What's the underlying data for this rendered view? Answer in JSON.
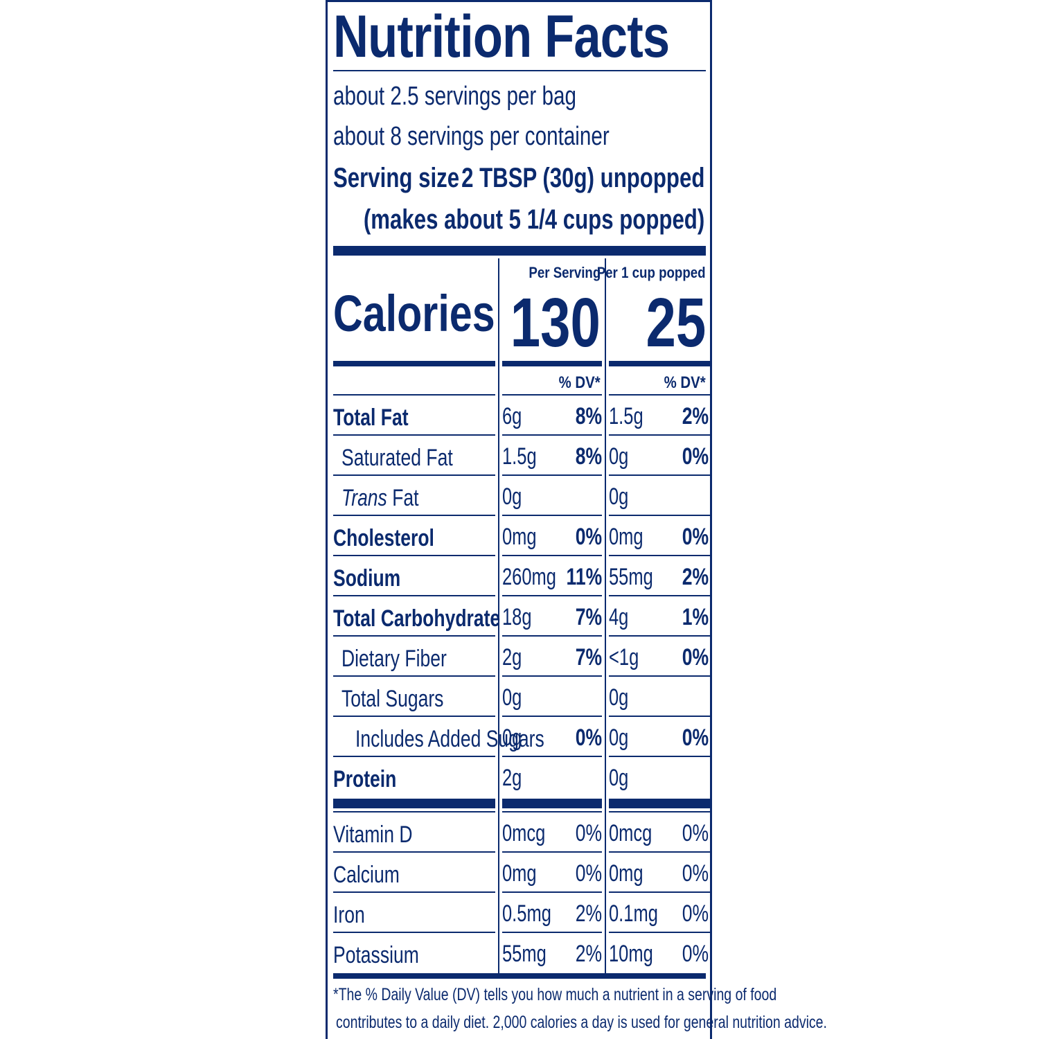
{
  "title": "Nutrition Facts",
  "servings_per_bag": "about 2.5 servings per bag",
  "servings_per_container": "about 8 servings per container",
  "serving_size_label": "Serving size",
  "serving_size_value": "2 TBSP (30g) unpopped",
  "serving_size_note": "(makes about 5 1/4 cups popped)",
  "col1_header": "Per Serving",
  "col2_header": "Per 1 cup popped",
  "calories_label": "Calories",
  "calories_col1": "130",
  "calories_col2": "25",
  "dv_header": "% DV*",
  "nutrients": [
    {
      "name": "Total Fat",
      "bold": true,
      "indent": 0,
      "a1": "6g",
      "p1": "8%",
      "a2": "1.5g",
      "p2": "2%"
    },
    {
      "name": "Saturated Fat",
      "bold": false,
      "indent": 1,
      "a1": "1.5g",
      "p1": "8%",
      "a2": "0g",
      "p2": "0%"
    },
    {
      "name": "Trans Fat",
      "italic_prefix": "Trans",
      "bold": false,
      "indent": 1,
      "a1": "0g",
      "p1": "",
      "a2": "0g",
      "p2": ""
    },
    {
      "name": "Cholesterol",
      "bold": true,
      "indent": 0,
      "a1": "0mg",
      "p1": "0%",
      "a2": "0mg",
      "p2": "0%"
    },
    {
      "name": "Sodium",
      "bold": true,
      "indent": 0,
      "a1": "260mg",
      "p1": "11%",
      "a2": "55mg",
      "p2": "2%"
    },
    {
      "name": "Total Carbohydrate",
      "bold": true,
      "indent": 0,
      "a1": "18g",
      "p1": "7%",
      "a2": "4g",
      "p2": "1%"
    },
    {
      "name": "Dietary Fiber",
      "bold": false,
      "indent": 1,
      "a1": "2g",
      "p1": "7%",
      "a2": "<1g",
      "p2": "0%"
    },
    {
      "name": "Total Sugars",
      "bold": false,
      "indent": 1,
      "a1": "0g",
      "p1": "",
      "a2": "0g",
      "p2": ""
    },
    {
      "name": "Includes Added Sugars",
      "bold": false,
      "indent": 2,
      "a1": "0g",
      "p1": "0%",
      "a2": "0g",
      "p2": "0%"
    },
    {
      "name": "Protein",
      "bold": true,
      "indent": 0,
      "a1": "2g",
      "p1": "",
      "a2": "0g",
      "p2": ""
    }
  ],
  "vitamins": [
    {
      "name": "Vitamin D",
      "a1": "0mcg",
      "p1": "0%",
      "a2": "0mcg",
      "p2": "0%"
    },
    {
      "name": "Calcium",
      "a1": "0mg",
      "p1": "0%",
      "a2": "0mg",
      "p2": "0%"
    },
    {
      "name": "Iron",
      "a1": "0.5mg",
      "p1": "2%",
      "a2": "0.1mg",
      "p2": "0%"
    },
    {
      "name": "Potassium",
      "a1": "55mg",
      "p1": "2%",
      "a2": "10mg",
      "p2": "0%"
    }
  ],
  "footnote_line1": "*The % Daily Value (DV) tells you how much a nutrient in a serving of food",
  "footnote_line2": "contributes to a daily diet. 2,000 calories a day is used for general nutrition advice.",
  "colors": {
    "ink": "#0b2a6e",
    "background": "#ffffff"
  }
}
